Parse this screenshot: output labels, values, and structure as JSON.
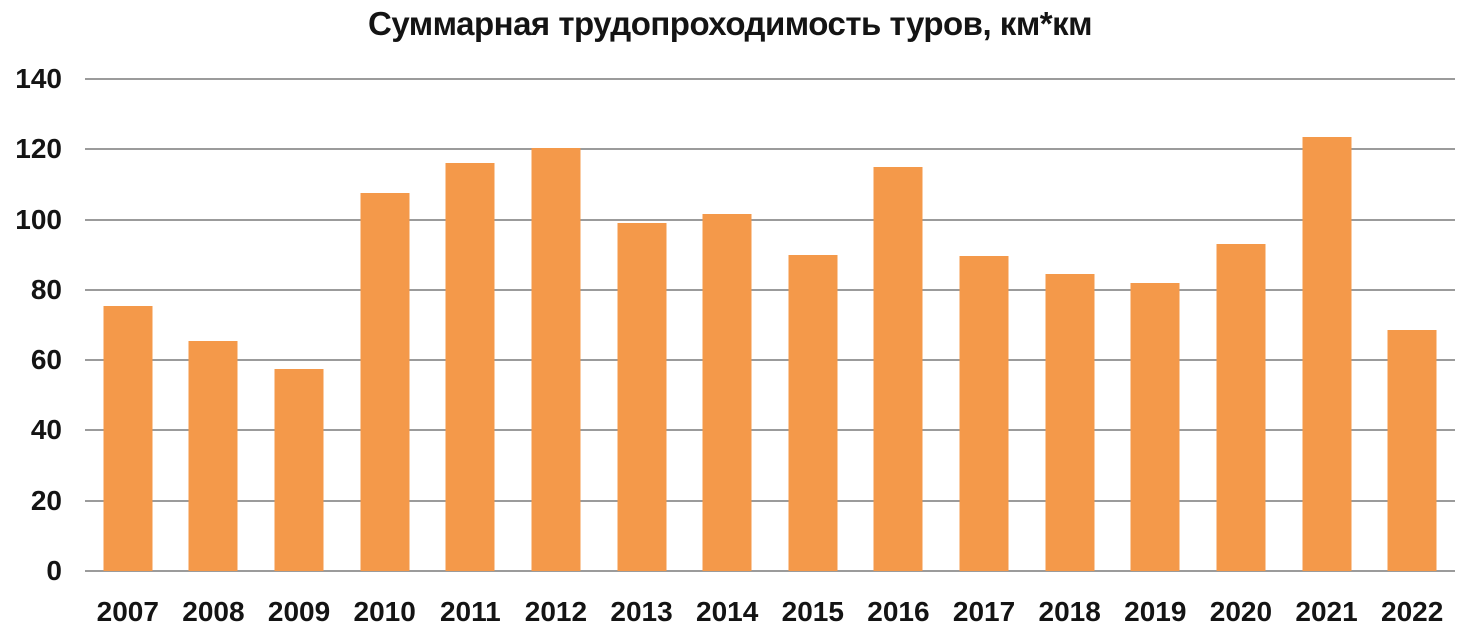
{
  "chart_data": {
    "type": "bar",
    "title": "Суммарная трудопроходимость туров, км*км",
    "categories": [
      "2007",
      "2008",
      "2009",
      "2010",
      "2011",
      "2012",
      "2013",
      "2014",
      "2015",
      "2016",
      "2017",
      "2018",
      "2019",
      "2020",
      "2021",
      "2022"
    ],
    "values": [
      75.5,
      65.5,
      57.5,
      107.5,
      116,
      120.5,
      99,
      101.5,
      90,
      115,
      89.5,
      84.5,
      82,
      93,
      123.5,
      68.5
    ],
    "xlabel": "",
    "ylabel": "",
    "ylim": [
      0,
      140
    ],
    "yticks": [
      0,
      20,
      40,
      60,
      80,
      100,
      120,
      140
    ],
    "grid": true,
    "legend_position": "none",
    "bar_color": "#F4994A",
    "gridline_color": "#9B9B9B",
    "text_color": "#141414",
    "background_color": "#FFFFFF"
  }
}
